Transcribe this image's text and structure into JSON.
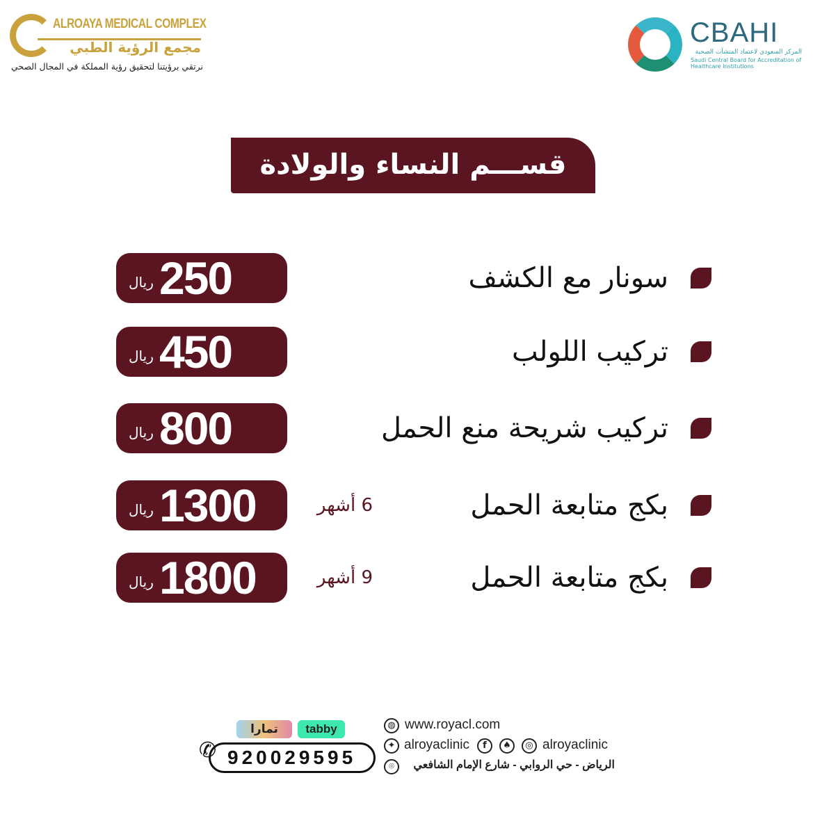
{
  "header": {
    "clinic_logo": {
      "name_en": "ALROAYA MEDICAL COMPLEX",
      "name_ar": "مجمع الرؤية الطبي",
      "slogan": "نرتقي برؤيتنا لتحقيق رؤية المملكة في المجال الصحي"
    },
    "accreditation_logo": {
      "title": "CBAHI",
      "subtitle_ar": "المركز السعودي لاعتماد المنشآت الصحية",
      "subtitle_en": "Saudi Central Board for Accreditation of Healthcare Institutions"
    }
  },
  "banner": {
    "title": "قســـم النساء والولادة"
  },
  "colors": {
    "brand": "#5a1520",
    "gold": "#c9a23e"
  },
  "services": [
    {
      "name": "سونار مع الكشف",
      "note": "",
      "price": "250",
      "currency": "ريال"
    },
    {
      "name": "تركيب اللولب",
      "note": "",
      "price": "450",
      "currency": "ريال"
    },
    {
      "name": "تركيب شريحة منع الحمل",
      "note": "",
      "price": "800",
      "currency": "ريال"
    },
    {
      "name": "بكج متابعة الحمل",
      "note": "6 أشهر",
      "price": "1300",
      "currency": "ريال"
    },
    {
      "name": "بكج متابعة الحمل",
      "note": "9 أشهر",
      "price": "1800",
      "currency": "ريال"
    }
  ],
  "footer": {
    "payment": {
      "tabby": "tabby",
      "tamara": "تمارا"
    },
    "phone": "920029595",
    "website": "www.royacl.com",
    "twitter": "alroyaclinic",
    "instagram": "alroyaclinic",
    "address": "الرياض - حي الروابي - شارع الإمام الشافعي",
    "icons": [
      "globe-icon",
      "twitter-icon",
      "facebook-icon",
      "snapchat-icon",
      "instagram-icon",
      "location-icon",
      "phone-icon"
    ]
  }
}
